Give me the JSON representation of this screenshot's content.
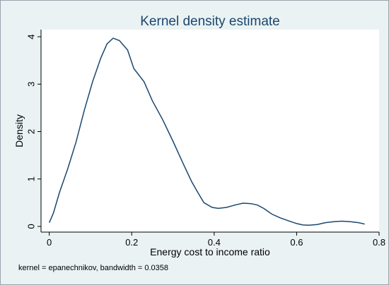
{
  "chart_data": {
    "type": "line",
    "title": "Kernel density estimate",
    "xlabel": "Energy cost to income ratio",
    "ylabel": "Density",
    "note": "kernel = epanechnikov, bandwidth = 0.0358",
    "xlim": [
      -0.02,
      0.8
    ],
    "ylim": [
      -0.12,
      4.15
    ],
    "xticks": [
      0,
      0.2,
      0.4,
      0.6,
      0.8
    ],
    "xtick_labels": [
      "0",
      "0.2",
      "0.4",
      "0.6",
      "0.8"
    ],
    "yticks": [
      0,
      1,
      2,
      3,
      4
    ],
    "ytick_labels": [
      "0",
      "1",
      "2",
      "3",
      "4"
    ],
    "grid": false,
    "line_color": "#1a476f",
    "series": [
      {
        "x": [
          0.0,
          0.01,
          0.025,
          0.045,
          0.065,
          0.085,
          0.105,
          0.125,
          0.14,
          0.155,
          0.17,
          0.19,
          0.205,
          0.23,
          0.25,
          0.275,
          0.3,
          0.325,
          0.345,
          0.36,
          0.375,
          0.395,
          0.41,
          0.43,
          0.45,
          0.47,
          0.49,
          0.505,
          0.52,
          0.54,
          0.56,
          0.58,
          0.6,
          0.615,
          0.63,
          0.65,
          0.67,
          0.69,
          0.71,
          0.73,
          0.75,
          0.765
        ],
        "y": [
          0.08,
          0.28,
          0.72,
          1.22,
          1.78,
          2.45,
          3.05,
          3.55,
          3.85,
          3.97,
          3.92,
          3.72,
          3.33,
          3.05,
          2.65,
          2.25,
          1.8,
          1.32,
          0.95,
          0.72,
          0.5,
          0.4,
          0.38,
          0.4,
          0.45,
          0.49,
          0.48,
          0.45,
          0.38,
          0.26,
          0.18,
          0.12,
          0.06,
          0.03,
          0.025,
          0.04,
          0.08,
          0.1,
          0.11,
          0.1,
          0.08,
          0.05
        ]
      }
    ]
  }
}
